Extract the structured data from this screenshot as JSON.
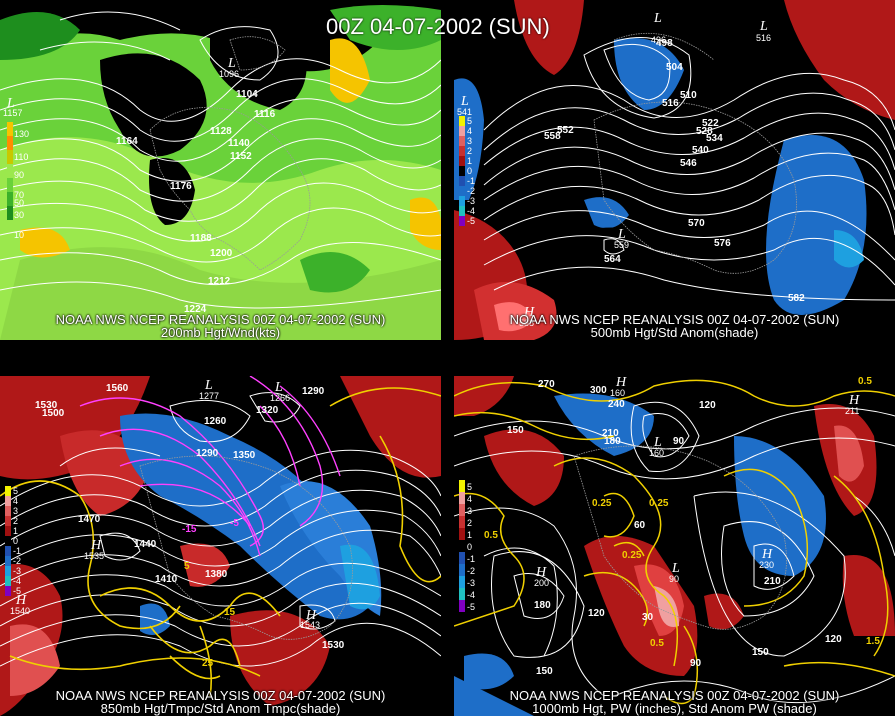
{
  "title": "00Z 04-07-2002 (SUN)",
  "source": "NOAA NWS NCEP REANALYSIS 00Z 04-07-2002 (SUN)",
  "panels": [
    {
      "caption": "200mb Hgt/Wnd(kts)",
      "colorbar": [
        "130",
        "110",
        "90",
        "70",
        "50",
        "30",
        "10"
      ],
      "contour_labels": [
        "1104",
        "1116",
        "1128",
        "1140",
        "1152",
        "1164",
        "1176",
        "1188",
        "1200",
        "1212",
        "1224"
      ],
      "highs": [],
      "lows": [
        {
          "letter": "L",
          "value": "1096"
        },
        {
          "letter": "L",
          "value": "1157"
        }
      ]
    },
    {
      "caption": "500mb Hgt/Std Anom(shade)",
      "colorbar": [
        "5",
        "4",
        "3",
        "2",
        "1",
        "0",
        "-1",
        "-2",
        "-3",
        "-4",
        "-5"
      ],
      "contour_labels": [
        "498",
        "504",
        "510",
        "516",
        "522",
        "528",
        "534",
        "540",
        "546",
        "552",
        "558",
        "564",
        "570",
        "576",
        "582"
      ],
      "highs": [
        {
          "letter": "H",
          "value": "588"
        }
      ],
      "lows": [
        {
          "letter": "L",
          "value": "496"
        },
        {
          "letter": "L",
          "value": "516"
        },
        {
          "letter": "L",
          "value": "559"
        },
        {
          "letter": "L",
          "value": "541"
        }
      ]
    },
    {
      "caption": "850mb Hgt/Tmpc/Std Anom Tmpc(shade)",
      "colorbar": [
        "5",
        "4",
        "3",
        "2",
        "1",
        "0",
        "-1",
        "-2",
        "-3",
        "-4",
        "-5"
      ],
      "contour_labels": [
        "1560",
        "1530",
        "1500",
        "1260",
        "1290",
        "1320",
        "1350",
        "1380",
        "1410",
        "1440",
        "1470",
        "1290",
        "1530"
      ],
      "temp_labels": [
        "-15",
        "-5",
        "5",
        "15",
        "25"
      ],
      "highs": [
        {
          "letter": "H",
          "value": "1535"
        },
        {
          "letter": "H",
          "value": "1540"
        },
        {
          "letter": "H",
          "value": "1543"
        }
      ],
      "lows": [
        {
          "letter": "L",
          "value": "1277"
        },
        {
          "letter": "L",
          "value": "1266"
        }
      ]
    },
    {
      "caption": "1000mb Hgt, PW (inches), Std Anom PW (shade)",
      "colorbar": [
        "5",
        "4",
        "3",
        "2",
        "1",
        "0",
        "-1",
        "-2",
        "-3",
        "-4",
        "-5"
      ],
      "contour_labels": [
        "270",
        "300",
        "240",
        "210",
        "180",
        "150",
        "120",
        "90",
        "60",
        "30",
        "180",
        "150",
        "120",
        "150",
        "120",
        "90",
        "210"
      ],
      "pw_labels": [
        "0.25",
        "0.25",
        "0.25",
        "0.5",
        "0.5",
        "1.5",
        "0.5"
      ],
      "highs": [
        {
          "letter": "H",
          "value": "200"
        },
        {
          "letter": "H",
          "value": "230"
        },
        {
          "letter": "H",
          "value": "211"
        },
        {
          "letter": "H",
          "value": "160"
        }
      ],
      "lows": [
        {
          "letter": "L",
          "value": "160"
        },
        {
          "letter": "L",
          "value": "90"
        }
      ]
    }
  ],
  "colors": {
    "wind": [
      "#f5c400",
      "#ff8c00",
      "#c8c800",
      "#9be84d",
      "#6ad23a",
      "#3cb12a",
      "#1e8e1e"
    ],
    "anom_pos": [
      "#f2f200",
      "#f0a0a0",
      "#e06060",
      "#c83030",
      "#a01010"
    ],
    "anom_neg": [
      "#1e6ec8",
      "#1ea0e0",
      "#20c0c0",
      "#2050b0",
      "#8000c0"
    ],
    "contour": "#ffffff",
    "temp_contour": "#ff40ff",
    "pw_contour": "#f0d000"
  }
}
